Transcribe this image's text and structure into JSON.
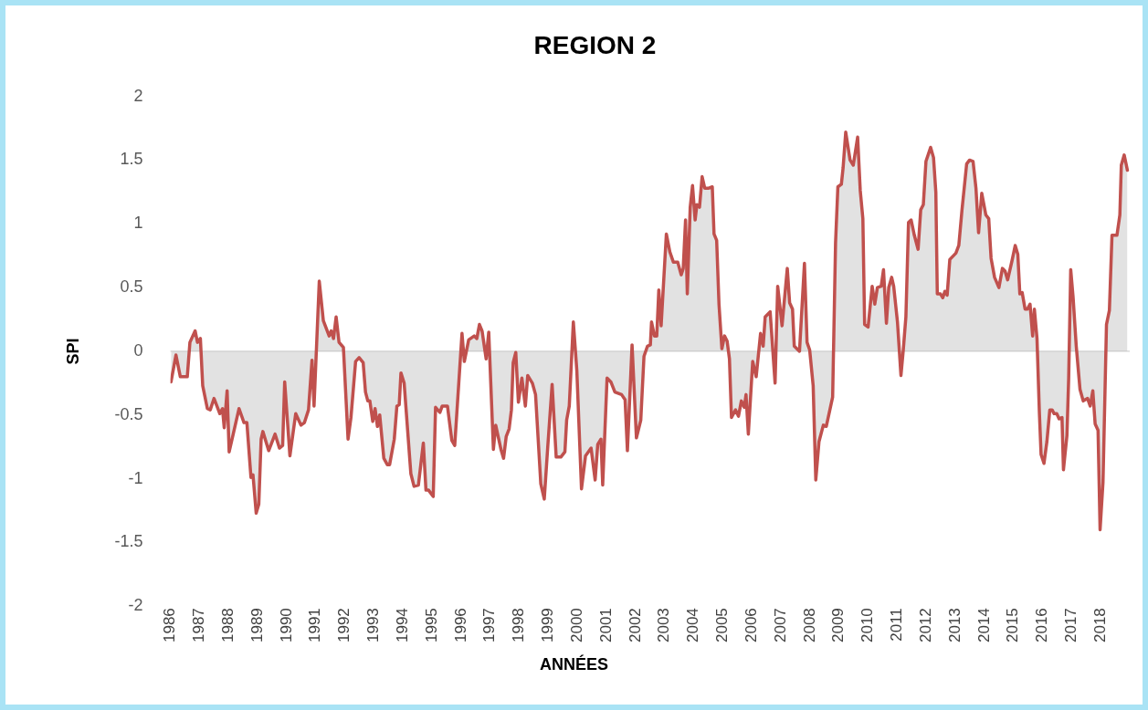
{
  "chart_data": {
    "type": "area",
    "title": "REGION 2",
    "xlabel": "ANNÉES",
    "ylabel": "SPI",
    "xlim": [
      1986,
      2019
    ],
    "xticks": [
      1986,
      1987,
      1988,
      1989,
      1990,
      1991,
      1992,
      1993,
      1994,
      1995,
      1996,
      1997,
      1998,
      1999,
      2000,
      2001,
      2002,
      2003,
      2004,
      2005,
      2006,
      2007,
      2008,
      2009,
      2010,
      2011,
      2012,
      2013,
      2014,
      2015,
      2016,
      2017,
      2018
    ],
    "ylim": [
      -2,
      2
    ],
    "yticks": [
      -2,
      -1.5,
      -1,
      -0.5,
      0,
      0.5,
      1,
      1.5,
      2
    ],
    "grid": false,
    "legend": false,
    "ref_lines": [
      {
        "axis": "y",
        "value": 0,
        "color": "#c8c8c8"
      }
    ],
    "series": [
      {
        "color": "#c0504d",
        "x": [
          1986.02,
          1986.19,
          1986.34,
          1986.58,
          1986.67,
          1986.85,
          1986.93,
          1987.03,
          1987.11,
          1987.27,
          1987.37,
          1987.5,
          1987.7,
          1987.79,
          1987.85,
          1987.95,
          1988.02,
          1988.36,
          1988.53,
          1988.63,
          1988.77,
          1988.84,
          1988.95,
          1989.04,
          1989.12,
          1989.18,
          1989.38,
          1989.6,
          1989.75,
          1989.86,
          1989.93,
          1990.11,
          1990.31,
          1990.49,
          1990.61,
          1990.75,
          1990.87,
          1990.94,
          1991.12,
          1991.26,
          1991.46,
          1991.53,
          1991.61,
          1991.7,
          1991.8,
          1991.95,
          1992.11,
          1992.21,
          1992.37,
          1992.49,
          1992.63,
          1992.71,
          1992.79,
          1992.86,
          1992.96,
          1993.04,
          1993.12,
          1993.2,
          1993.34,
          1993.46,
          1993.54,
          1993.7,
          1993.79,
          1993.87,
          1993.93,
          1994.04,
          1994.27,
          1994.38,
          1994.53,
          1994.7,
          1994.79,
          1994.88,
          1995.04,
          1995.12,
          1995.27,
          1995.35,
          1995.53,
          1995.68,
          1995.78,
          1996.03,
          1996.11,
          1996.26,
          1996.45,
          1996.54,
          1996.63,
          1996.72,
          1996.86,
          1996.95,
          1997.11,
          1997.19,
          1997.37,
          1997.46,
          1997.55,
          1997.65,
          1997.73,
          1997.79,
          1997.88,
          1997.97,
          1998.09,
          1998.21,
          1998.29,
          1998.45,
          1998.56,
          1998.74,
          1998.86,
          1998.98,
          1999.13,
          1999.27,
          1999.43,
          1999.57,
          1999.63,
          1999.72,
          1999.86,
          1999.98,
          2000.14,
          2000.28,
          2000.47,
          2000.61,
          2000.7,
          2000.81,
          2000.87,
          2001.02,
          2001.15,
          2001.29,
          2001.52,
          2001.64,
          2001.72,
          2001.88,
          2002.03,
          2002.18,
          2002.29,
          2002.41,
          2002.51,
          2002.55,
          2002.65,
          2002.73,
          2002.8,
          2002.88,
          2003.06,
          2003.18,
          2003.3,
          2003.45,
          2003.57,
          2003.64,
          2003.72,
          2003.78,
          2003.88,
          2003.96,
          2004.05,
          2004.11,
          2004.2,
          2004.29,
          2004.38,
          2004.52,
          2004.64,
          2004.7,
          2004.79,
          2004.87,
          2004.97,
          2005.06,
          2005.15,
          2005.23,
          2005.3,
          2005.44,
          2005.54,
          2005.64,
          2005.74,
          2005.8,
          2005.88,
          2006.03,
          2006.15,
          2006.3,
          2006.39,
          2006.46,
          2006.63,
          2006.8,
          2006.89,
          2007.04,
          2007.22,
          2007.3,
          2007.4,
          2007.46,
          2007.64,
          2007.81,
          2007.9,
          2007.99,
          2008.11,
          2008.2,
          2008.31,
          2008.46,
          2008.56,
          2008.78,
          2008.88,
          2008.96,
          2009.08,
          2009.14,
          2009.23,
          2009.38,
          2009.49,
          2009.64,
          2009.73,
          2009.82,
          2009.88,
          2010,
          2010.14,
          2010.23,
          2010.32,
          2010.45,
          2010.53,
          2010.63,
          2010.71,
          2010.81,
          2010.88,
          2011.01,
          2011.13,
          2011.21,
          2011.3,
          2011.39,
          2011.48,
          2011.59,
          2011.72,
          2011.81,
          2011.9,
          2011.99,
          2012.15,
          2012.25,
          2012.33,
          2012.38,
          2012.49,
          2012.57,
          2012.64,
          2012.72,
          2012.81,
          2013.02,
          2013.12,
          2013.23,
          2013.39,
          2013.49,
          2013.61,
          2013.71,
          2013.8,
          2013.91,
          2014.05,
          2014.15,
          2014.23,
          2014.35,
          2014.5,
          2014.62,
          2014.71,
          2014.8,
          2014.95,
          2015.06,
          2015.15,
          2015.22,
          2015.3,
          2015.4,
          2015.48,
          2015.57,
          2015.66,
          2015.72,
          2015.81,
          2015.89,
          2015.95,
          2016.05,
          2016.15,
          2016.25,
          2016.33,
          2016.4,
          2016.49,
          2016.57,
          2016.67,
          2016.72,
          2016.84,
          2016.9,
          2016.97,
          2017.05,
          2017.16,
          2017.29,
          2017.4,
          2017.55,
          2017.64,
          2017.73,
          2017.81,
          2017.91,
          2017.98,
          2018.08,
          2018.2,
          2018.3,
          2018.39,
          2018.56,
          2018.66,
          2018.71,
          2018.81,
          2018.92
        ],
        "values": [
          -0.24,
          -0.03,
          -0.2,
          -0.2,
          0.07,
          0.16,
          0.07,
          0.1,
          -0.27,
          -0.45,
          -0.46,
          -0.37,
          -0.49,
          -0.45,
          -0.6,
          -0.31,
          -0.79,
          -0.45,
          -0.56,
          -0.56,
          -0.99,
          -0.97,
          -1.27,
          -1.2,
          -0.69,
          -0.63,
          -0.78,
          -0.65,
          -0.76,
          -0.74,
          -0.24,
          -0.82,
          -0.49,
          -0.58,
          -0.56,
          -0.46,
          -0.07,
          -0.43,
          0.55,
          0.24,
          0.12,
          0.16,
          0.1,
          0.27,
          0.07,
          0.03,
          -0.69,
          -0.52,
          -0.08,
          -0.05,
          -0.09,
          -0.32,
          -0.39,
          -0.39,
          -0.55,
          -0.45,
          -0.59,
          -0.5,
          -0.84,
          -0.89,
          -0.89,
          -0.69,
          -0.43,
          -0.42,
          -0.17,
          -0.25,
          -0.96,
          -1.06,
          -1.05,
          -0.72,
          -1.09,
          -1.09,
          -1.14,
          -0.44,
          -0.48,
          -0.43,
          -0.43,
          -0.7,
          -0.74,
          0.14,
          -0.08,
          0.09,
          0.12,
          0.1,
          0.21,
          0.16,
          -0.06,
          0.15,
          -0.77,
          -0.58,
          -0.77,
          -0.84,
          -0.67,
          -0.61,
          -0.46,
          -0.09,
          -0.01,
          -0.4,
          -0.21,
          -0.43,
          -0.19,
          -0.25,
          -0.34,
          -1.04,
          -1.16,
          -0.75,
          -0.26,
          -0.83,
          -0.83,
          -0.79,
          -0.54,
          -0.43,
          0.23,
          -0.15,
          -1.08,
          -0.82,
          -0.76,
          -1.01,
          -0.73,
          -0.69,
          -1.05,
          -0.21,
          -0.24,
          -0.32,
          -0.34,
          -0.38,
          -0.78,
          0.05,
          -0.68,
          -0.54,
          -0.04,
          0.04,
          0.05,
          0.23,
          0.12,
          0.12,
          0.48,
          0.2,
          0.92,
          0.78,
          0.7,
          0.7,
          0.6,
          0.65,
          1.03,
          0.45,
          1.13,
          1.3,
          1.03,
          1.15,
          1.13,
          1.37,
          1.28,
          1.28,
          1.29,
          0.92,
          0.87,
          0.37,
          0.02,
          0.12,
          0.08,
          -0.06,
          -0.52,
          -0.46,
          -0.51,
          -0.39,
          -0.44,
          -0.34,
          -0.65,
          -0.08,
          -0.2,
          0.14,
          0.04,
          0.27,
          0.31,
          -0.25,
          0.51,
          0.2,
          0.65,
          0.38,
          0.33,
          0.04,
          0,
          0.69,
          0.07,
          0.01,
          -0.27,
          -1.01,
          -0.71,
          -0.58,
          -0.59,
          -0.36,
          0.85,
          1.29,
          1.31,
          1.44,
          1.72,
          1.5,
          1.46,
          1.68,
          1.26,
          1.04,
          0.21,
          0.19,
          0.51,
          0.37,
          0.5,
          0.51,
          0.64,
          0.22,
          0.5,
          0.58,
          0.51,
          0.23,
          -0.19,
          0.01,
          0.27,
          1.01,
          1.03,
          0.91,
          0.8,
          1.11,
          1.15,
          1.49,
          1.6,
          1.52,
          1.25,
          0.45,
          0.45,
          0.42,
          0.47,
          0.44,
          0.72,
          0.77,
          0.83,
          1.11,
          1.47,
          1.5,
          1.49,
          1.28,
          0.93,
          1.24,
          1.07,
          1.04,
          0.73,
          0.58,
          0.5,
          0.65,
          0.63,
          0.56,
          0.71,
          0.83,
          0.76,
          0.45,
          0.46,
          0.33,
          0.33,
          0.37,
          0.12,
          0.33,
          0.1,
          -0.47,
          -0.81,
          -0.88,
          -0.71,
          -0.46,
          -0.46,
          -0.49,
          -0.49,
          -0.53,
          -0.52,
          -0.93,
          -0.66,
          -0.21,
          0.64,
          0.43,
          0.04,
          -0.3,
          -0.39,
          -0.37,
          -0.43,
          -0.31,
          -0.57,
          -0.62,
          -1.4,
          -1.03,
          0.21,
          0.32,
          0.91,
          0.91,
          1.07,
          1.46,
          1.54,
          1.42
        ]
      }
    ]
  }
}
